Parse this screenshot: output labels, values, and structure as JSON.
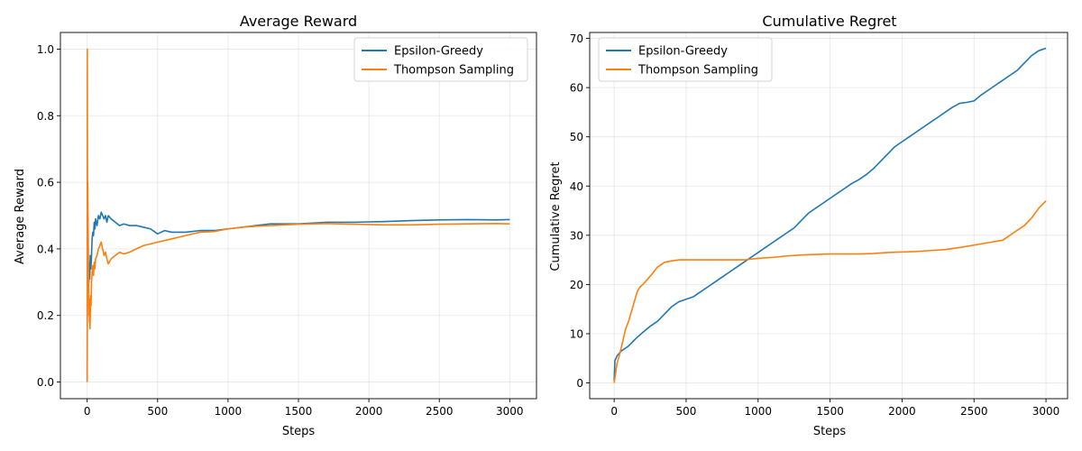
{
  "chart_data": [
    {
      "type": "line",
      "title": "Average Reward",
      "xlabel": "Steps",
      "ylabel": "Average Reward",
      "xlim": [
        -190,
        3190
      ],
      "ylim": [
        -0.05,
        1.05
      ],
      "xticks": [
        0,
        500,
        1000,
        1500,
        2000,
        2500,
        3000
      ],
      "xtick_labels": [
        "0",
        "500",
        "1000",
        "1500",
        "2000",
        "2500",
        "3000"
      ],
      "yticks": [
        0.0,
        0.2,
        0.4,
        0.6,
        0.8,
        1.0
      ],
      "ytick_labels": [
        "0.0",
        "0.2",
        "0.4",
        "0.6",
        "0.8",
        "1.0"
      ],
      "grid": true,
      "legend": "top-right",
      "series": [
        {
          "name": "Epsilon-Greedy",
          "color": "#1f77b4",
          "x": [
            0,
            2,
            4,
            6,
            8,
            10,
            12,
            15,
            18,
            22,
            26,
            30,
            35,
            40,
            45,
            50,
            55,
            60,
            70,
            80,
            90,
            100,
            110,
            120,
            130,
            140,
            150,
            170,
            200,
            230,
            260,
            300,
            350,
            400,
            450,
            500,
            550,
            600,
            700,
            800,
            900,
            1000,
            1100,
            1200,
            1300,
            1400,
            1500,
            1700,
            1900,
            2100,
            2300,
            2500,
            2700,
            2900,
            3000
          ],
          "y": [
            0.0,
            0.5,
            0.33,
            0.5,
            0.28,
            0.36,
            0.3,
            0.35,
            0.31,
            0.38,
            0.34,
            0.37,
            0.43,
            0.45,
            0.44,
            0.48,
            0.46,
            0.49,
            0.47,
            0.5,
            0.49,
            0.51,
            0.5,
            0.49,
            0.5,
            0.48,
            0.5,
            0.49,
            0.48,
            0.47,
            0.475,
            0.47,
            0.47,
            0.465,
            0.46,
            0.445,
            0.455,
            0.45,
            0.45,
            0.455,
            0.455,
            0.46,
            0.465,
            0.47,
            0.475,
            0.475,
            0.475,
            0.48,
            0.48,
            0.482,
            0.485,
            0.487,
            0.488,
            0.487,
            0.488
          ]
        },
        {
          "name": "Thompson Sampling",
          "color": "#ff7f0e",
          "x": [
            0,
            1,
            2,
            3,
            4,
            6,
            8,
            10,
            12,
            14,
            16,
            18,
            20,
            22,
            25,
            28,
            31,
            35,
            40,
            45,
            50,
            55,
            60,
            70,
            80,
            90,
            100,
            110,
            120,
            130,
            140,
            150,
            170,
            200,
            230,
            260,
            300,
            350,
            400,
            450,
            500,
            600,
            700,
            800,
            900,
            1000,
            1100,
            1200,
            1300,
            1400,
            1500,
            1700,
            1900,
            2100,
            2300,
            2500,
            2700,
            2900,
            3000
          ],
          "y": [
            0.0,
            1.0,
            0.67,
            0.5,
            0.6,
            0.5,
            0.4,
            0.3,
            0.2,
            0.25,
            0.18,
            0.22,
            0.16,
            0.2,
            0.26,
            0.23,
            0.3,
            0.33,
            0.35,
            0.32,
            0.36,
            0.34,
            0.37,
            0.38,
            0.4,
            0.41,
            0.42,
            0.4,
            0.38,
            0.39,
            0.37,
            0.355,
            0.37,
            0.38,
            0.39,
            0.385,
            0.39,
            0.4,
            0.41,
            0.415,
            0.42,
            0.43,
            0.44,
            0.45,
            0.452,
            0.46,
            0.465,
            0.468,
            0.47,
            0.472,
            0.474,
            0.476,
            0.474,
            0.472,
            0.472,
            0.474,
            0.475,
            0.476,
            0.475
          ]
        }
      ]
    },
    {
      "type": "line",
      "title": "Cumulative Regret",
      "xlabel": "Steps",
      "ylabel": "Cumulative Regret",
      "xlim": [
        -170,
        3150
      ],
      "ylim": [
        -3.2,
        71.2
      ],
      "xticks": [
        0,
        500,
        1000,
        1500,
        2000,
        2500,
        3000
      ],
      "xtick_labels": [
        "0",
        "500",
        "1000",
        "1500",
        "2000",
        "2500",
        "3000"
      ],
      "yticks": [
        0,
        10,
        20,
        30,
        40,
        50,
        60,
        70
      ],
      "ytick_labels": [
        "0",
        "10",
        "20",
        "30",
        "40",
        "50",
        "60",
        "70"
      ],
      "grid": true,
      "legend": "top-left",
      "series": [
        {
          "name": "Epsilon-Greedy",
          "color": "#1f77b4",
          "x": [
            0,
            5,
            20,
            50,
            100,
            150,
            200,
            250,
            300,
            350,
            400,
            450,
            500,
            550,
            600,
            650,
            700,
            750,
            800,
            850,
            900,
            950,
            1000,
            1050,
            1100,
            1150,
            1200,
            1250,
            1300,
            1350,
            1400,
            1450,
            1500,
            1550,
            1600,
            1650,
            1700,
            1750,
            1800,
            1850,
            1900,
            1950,
            2000,
            2050,
            2100,
            2150,
            2200,
            2250,
            2300,
            2350,
            2400,
            2450,
            2500,
            2550,
            2600,
            2650,
            2700,
            2750,
            2800,
            2850,
            2900,
            2950,
            3000
          ],
          "y": [
            0.5,
            4.5,
            5.5,
            6.5,
            7.5,
            9.0,
            10.3,
            11.5,
            12.5,
            14.0,
            15.5,
            16.5,
            17.0,
            17.5,
            18.5,
            19.5,
            20.5,
            21.5,
            22.5,
            23.5,
            24.5,
            25.5,
            26.5,
            27.5,
            28.5,
            29.5,
            30.5,
            31.5,
            33.0,
            34.5,
            35.5,
            36.5,
            37.5,
            38.5,
            39.5,
            40.5,
            41.3,
            42.3,
            43.5,
            45.0,
            46.5,
            48.0,
            49.0,
            50.0,
            51.0,
            52.0,
            53.0,
            54.0,
            55.0,
            56.0,
            56.8,
            57.0,
            57.3,
            58.5,
            59.5,
            60.5,
            61.5,
            62.5,
            63.5,
            65.0,
            66.5,
            67.5,
            68.0
          ]
        },
        {
          "name": "Thompson Sampling",
          "color": "#ff7f0e",
          "x": [
            0,
            20,
            40,
            60,
            80,
            100,
            120,
            140,
            160,
            180,
            200,
            230,
            260,
            300,
            350,
            400,
            450,
            500,
            600,
            700,
            800,
            900,
            1000,
            1100,
            1200,
            1300,
            1400,
            1500,
            1600,
            1700,
            1800,
            1900,
            2000,
            2100,
            2200,
            2300,
            2400,
            2500,
            2600,
            2700,
            2750,
            2800,
            2850,
            2900,
            2950,
            3000
          ],
          "y": [
            0.0,
            4.0,
            6.0,
            8.5,
            11.0,
            12.5,
            14.5,
            16.5,
            18.5,
            19.5,
            20.0,
            21.0,
            22.0,
            23.5,
            24.5,
            24.8,
            25.0,
            25.0,
            25.0,
            25.0,
            25.0,
            25.0,
            25.3,
            25.5,
            25.8,
            26.0,
            26.1,
            26.2,
            26.2,
            26.2,
            26.3,
            26.5,
            26.6,
            26.7,
            26.9,
            27.1,
            27.5,
            28.0,
            28.5,
            29.0,
            30.0,
            31.0,
            32.0,
            33.5,
            35.5,
            37.0
          ]
        }
      ]
    }
  ]
}
